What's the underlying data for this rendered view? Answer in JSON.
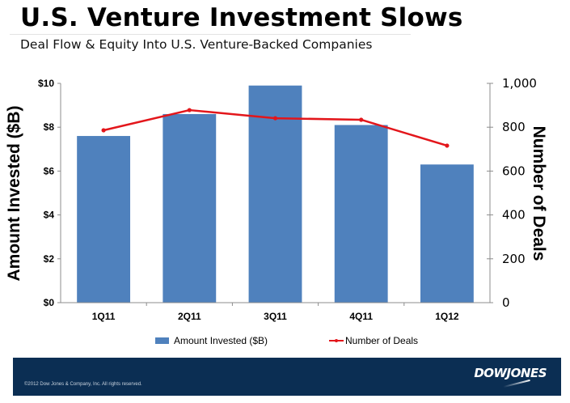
{
  "header": {
    "title": "U.S. Venture Investment Slows",
    "subtitle": "Deal Flow & Equity Into U.S. Venture-Backed Companies"
  },
  "chart_data": {
    "type": "bar",
    "title": "U.S. Venture Investment Slows",
    "subtitle": "Deal Flow & Equity Into U.S. Venture-Backed Companies",
    "categories": [
      "1Q11",
      "2Q11",
      "3Q11",
      "4Q11",
      "1Q12"
    ],
    "series": [
      {
        "name": "Amount Invested ($B)",
        "type": "bar",
        "axis": "left",
        "color": "#4f81bd",
        "values": [
          7.6,
          8.6,
          9.9,
          8.1,
          6.3
        ]
      },
      {
        "name": "Number of Deals",
        "type": "line",
        "axis": "right",
        "color": "#e3161b",
        "values": [
          786,
          878,
          841,
          834,
          716
        ]
      }
    ],
    "ylabel": "Amount Invested ($B)",
    "y2label": "Number of Deals",
    "ylim": [
      0,
      10
    ],
    "y2lim": [
      0,
      1000
    ],
    "yticks": [
      "$0",
      "$2",
      "$4",
      "$6",
      "$8",
      "$10"
    ],
    "ytick_values": [
      0,
      2,
      4,
      6,
      8,
      10
    ],
    "y2ticks": [
      "0",
      "200",
      "400",
      "600",
      "800",
      "1,000"
    ],
    "y2tick_values": [
      0,
      200,
      400,
      600,
      800,
      1000
    ],
    "grid": false,
    "legend": "bottom-center"
  },
  "legend": {
    "bar_label": "Amount Invested ($B)",
    "line_label": "Number of Deals"
  },
  "footer": {
    "copyright": "©2012 Dow Jones & Company, Inc. All rights reserved.",
    "logo": "DOWJONES"
  }
}
